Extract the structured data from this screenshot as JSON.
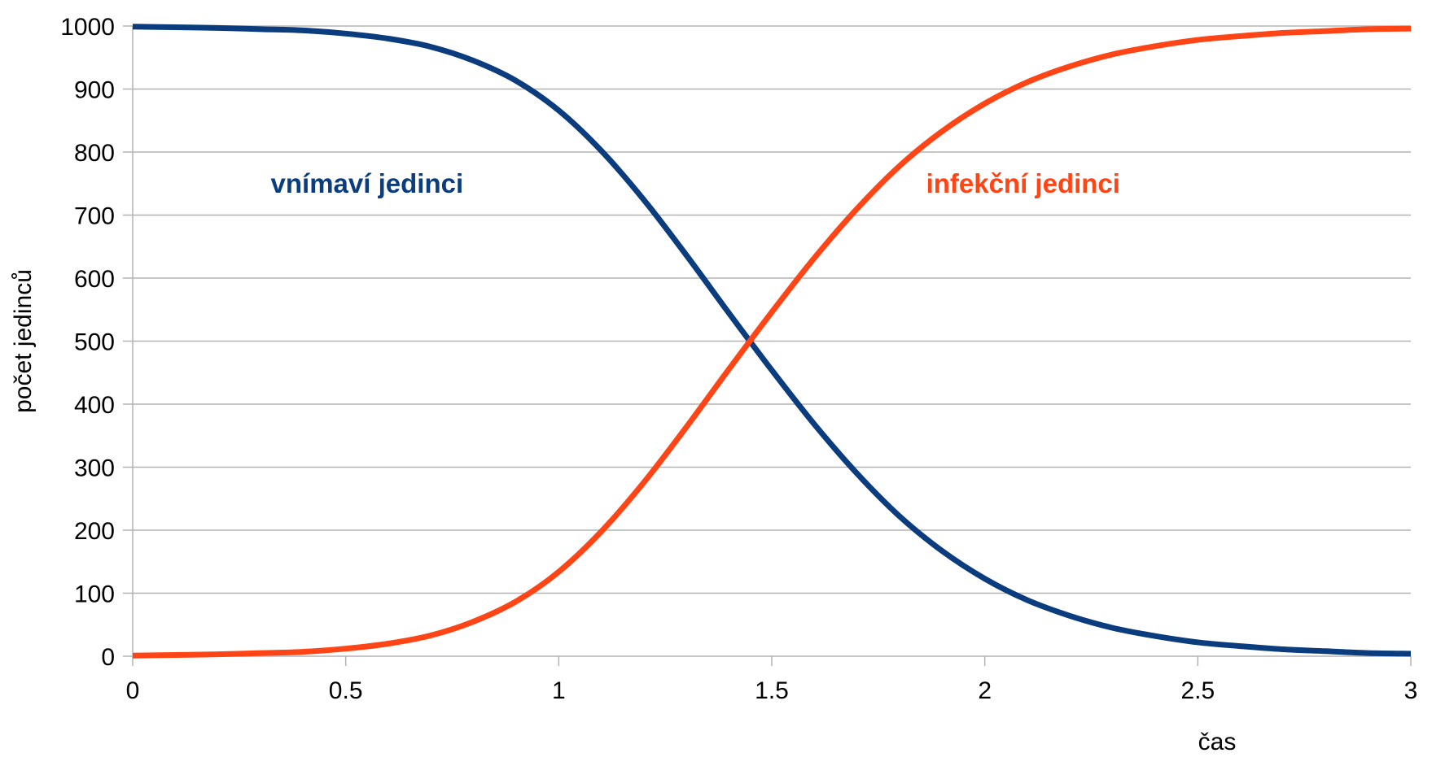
{
  "chart_data": {
    "type": "line",
    "xlabel": "čas",
    "ylabel": "počet jedinců",
    "xlim": [
      0,
      3
    ],
    "ylim": [
      0,
      1000
    ],
    "x_ticks": [
      "0",
      "0.5",
      "1",
      "1.5",
      "2",
      "2.5",
      "3"
    ],
    "y_ticks": [
      "0",
      "100",
      "200",
      "300",
      "400",
      "500",
      "600",
      "700",
      "800",
      "900",
      "1000"
    ],
    "grid": "horizontal",
    "legend": "none",
    "x": [
      0,
      0.1,
      0.2,
      0.3,
      0.4,
      0.5,
      0.6,
      0.7,
      0.8,
      0.9,
      1.0,
      1.1,
      1.2,
      1.3,
      1.4,
      1.5,
      1.6,
      1.7,
      1.8,
      1.9,
      2.0,
      2.1,
      2.2,
      2.3,
      2.4,
      2.5,
      2.6,
      2.7,
      2.8,
      2.9,
      3.0
    ],
    "series": [
      {
        "name": "vnímaví jedinci",
        "color": "#0b3d7e",
        "label_anchor": [
          0.55,
          750
        ],
        "values": [
          999,
          998,
          997,
          995,
          993,
          988,
          980,
          967,
          945,
          913,
          866,
          802,
          724,
          636,
          544,
          454,
          368,
          290,
          222,
          167,
          123,
          89,
          64,
          45,
          32,
          22,
          16,
          11,
          8,
          5,
          4
        ]
      },
      {
        "name": "infekční jedinci",
        "color": "#ff4415",
        "label_anchor": [
          2.09,
          750
        ],
        "values": [
          1,
          2,
          3,
          5,
          7,
          12,
          20,
          33,
          55,
          87,
          134,
          198,
          276,
          364,
          456,
          546,
          632,
          710,
          778,
          833,
          877,
          911,
          936,
          955,
          968,
          978,
          984,
          989,
          992,
          995,
          996
        ]
      }
    ]
  }
}
